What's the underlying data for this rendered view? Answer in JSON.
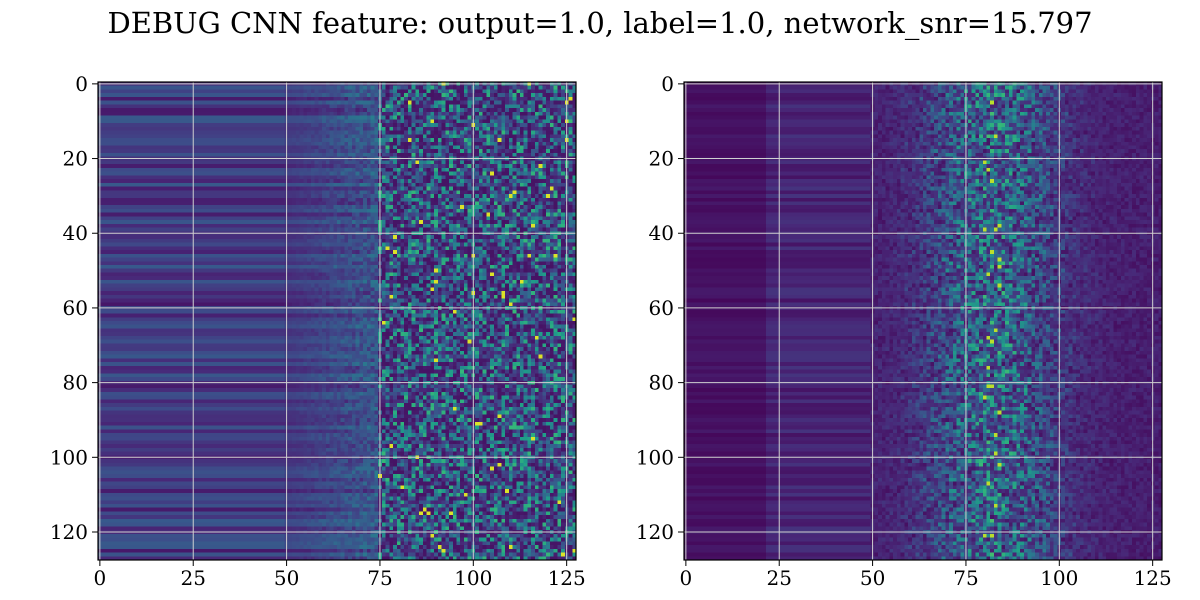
{
  "title": "DEBUG CNN feature: output=1.0, label=1.0, network_snr=15.797",
  "chart_data": [
    {
      "type": "heatmap",
      "panel": "left",
      "colormap": "viridis",
      "rows": 128,
      "cols": 128,
      "xlim": [
        0,
        127
      ],
      "ylim": [
        127,
        0
      ],
      "xticks": [
        "0",
        "25",
        "50",
        "75",
        "100",
        "125"
      ],
      "yticks": [
        "0",
        "20",
        "40",
        "60",
        "80",
        "100",
        "120"
      ],
      "grid": true,
      "grid_color": "#d0d0d0"
    },
    {
      "type": "heatmap",
      "panel": "right",
      "colormap": "viridis",
      "rows": 128,
      "cols": 128,
      "xlim": [
        0,
        127
      ],
      "ylim": [
        127,
        0
      ],
      "xticks": [
        "0",
        "25",
        "50",
        "75",
        "100",
        "125"
      ],
      "yticks": [
        "0",
        "20",
        "40",
        "60",
        "80",
        "100",
        "120"
      ],
      "grid": true,
      "grid_color": "#d0d0d0"
    }
  ]
}
